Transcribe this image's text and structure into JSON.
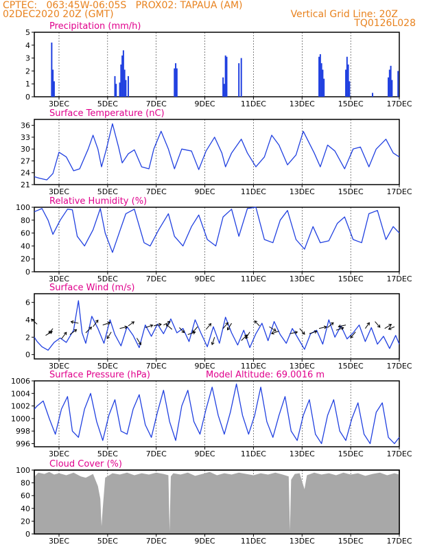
{
  "header": {
    "left1": "CPTEC:   063:45W-06:05S   PROX02: TAPAUA (AM)",
    "left2": "02DEC2020 20Z (GMT)",
    "right1": "Vertical Grid Line: 20Z",
    "right2": "TQ0126L028"
  },
  "colors": {
    "header": "#e8821e",
    "panel_title": "#e0008c",
    "line": "#2040e0",
    "bar": "#2040e0",
    "cloud": "#a8a8a8",
    "arrow": "#000000"
  },
  "x_axis": {
    "ticks": [
      "3DEC",
      "5DEC",
      "7DEC",
      "9DEC",
      "11DEC",
      "13DEC",
      "15DEC",
      "17DEC"
    ]
  },
  "chart_data": [
    {
      "type": "bar",
      "title": "Precipitation (mm/h)",
      "ylim": [
        0,
        5
      ],
      "yticks": [
        "0",
        "1",
        "2",
        "3",
        "4",
        "5"
      ],
      "points": [
        [
          2.7,
          4.2
        ],
        [
          2.75,
          2.1
        ],
        [
          2.8,
          1.2
        ],
        [
          5.3,
          1.6
        ],
        [
          5.35,
          1.0
        ],
        [
          5.5,
          1.1
        ],
        [
          5.55,
          2.5
        ],
        [
          5.6,
          3.2
        ],
        [
          5.65,
          3.6
        ],
        [
          5.7,
          2.1
        ],
        [
          5.75,
          1.3
        ],
        [
          5.85,
          1.6
        ],
        [
          7.75,
          2.2
        ],
        [
          7.8,
          2.6
        ],
        [
          7.85,
          2.2
        ],
        [
          9.75,
          1.5
        ],
        [
          9.8,
          1.0
        ],
        [
          9.85,
          3.2
        ],
        [
          9.9,
          3.1
        ],
        [
          10.4,
          2.6
        ],
        [
          10.5,
          3.0
        ],
        [
          13.7,
          3.1
        ],
        [
          13.75,
          3.3
        ],
        [
          13.8,
          2.6
        ],
        [
          13.85,
          2.1
        ],
        [
          13.9,
          1.4
        ],
        [
          14.8,
          2.1
        ],
        [
          14.85,
          3.1
        ],
        [
          14.9,
          2.5
        ],
        [
          14.95,
          1.2
        ],
        [
          15.9,
          0.3
        ],
        [
          16.55,
          1.5
        ],
        [
          16.6,
          2.1
        ],
        [
          16.65,
          2.4
        ],
        [
          16.7,
          1.3
        ],
        [
          16.95,
          2.0
        ]
      ]
    },
    {
      "type": "line",
      "title": "Surface Temperature (nC)",
      "ylim": [
        21,
        37.5
      ],
      "yticks": [
        "21",
        "24",
        "27",
        "30",
        "33",
        "36"
      ],
      "x": [
        1.85,
        2.2,
        2.5,
        2.75,
        3.0,
        3.3,
        3.6,
        3.85,
        4.2,
        4.4,
        4.6,
        4.75,
        4.95,
        5.2,
        5.45,
        5.6,
        5.85,
        6.1,
        6.4,
        6.7,
        6.9,
        7.2,
        7.5,
        7.75,
        8.05,
        8.45,
        8.75,
        9.05,
        9.4,
        9.7,
        9.85,
        10.1,
        10.5,
        10.75,
        11.1,
        11.45,
        11.75,
        12.05,
        12.4,
        12.75,
        13.05,
        13.5,
        13.75,
        14.05,
        14.35,
        14.75,
        15.1,
        15.4,
        15.75,
        16.05,
        16.45,
        16.75,
        17.0
      ],
      "y": [
        23.0,
        22.6,
        22.2,
        23.8,
        29.2,
        28.0,
        24.5,
        25.0,
        30.0,
        33.5,
        30.0,
        25.5,
        30.0,
        36.4,
        30.5,
        26.5,
        28.8,
        29.8,
        25.5,
        25.0,
        30.0,
        34.5,
        30.0,
        25.0,
        30.0,
        29.5,
        24.8,
        29.5,
        33.0,
        29.0,
        25.5,
        29.0,
        32.5,
        29.0,
        25.5,
        28.0,
        33.5,
        31.0,
        26.0,
        28.5,
        34.5,
        29.0,
        25.5,
        31.0,
        29.5,
        25.0,
        30.0,
        30.5,
        25.5,
        30.0,
        32.5,
        29.0,
        28.0
      ]
    },
    {
      "type": "line",
      "title": "Relative Humidity (%)",
      "ylim": [
        0,
        100
      ],
      "yticks": [
        "0",
        "20",
        "40",
        "60",
        "80",
        "100"
      ],
      "x": [
        1.85,
        2.3,
        2.55,
        2.75,
        3.05,
        3.35,
        3.55,
        3.75,
        4.05,
        4.4,
        4.7,
        4.9,
        5.2,
        5.5,
        5.75,
        6.1,
        6.5,
        6.75,
        7.1,
        7.5,
        7.75,
        8.1,
        8.45,
        8.75,
        9.1,
        9.45,
        9.75,
        10.1,
        10.4,
        10.75,
        11.1,
        11.45,
        11.8,
        12.1,
        12.4,
        12.75,
        13.1,
        13.45,
        13.75,
        14.1,
        14.45,
        14.75,
        15.1,
        15.45,
        15.75,
        16.1,
        16.45,
        16.75,
        17.0
      ],
      "y": [
        93,
        98,
        80,
        58,
        80,
        97,
        96,
        55,
        40,
        65,
        98,
        60,
        30,
        63,
        90,
        97,
        45,
        40,
        65,
        90,
        55,
        40,
        70,
        88,
        50,
        40,
        85,
        97,
        55,
        98,
        100,
        50,
        45,
        80,
        95,
        50,
        35,
        70,
        45,
        48,
        75,
        85,
        50,
        45,
        90,
        95,
        50,
        70,
        60
      ]
    },
    {
      "type": "line",
      "title": "Surface Wind (m/s)",
      "ylim": [
        -0.5,
        7
      ],
      "yticks": [
        "0",
        "2",
        "4",
        "6"
      ],
      "x": [
        1.85,
        2.1,
        2.3,
        2.55,
        2.8,
        3.05,
        3.3,
        3.6,
        3.8,
        3.95,
        4.1,
        4.35,
        4.6,
        4.85,
        5.1,
        5.3,
        5.55,
        5.8,
        6.05,
        6.3,
        6.55,
        6.8,
        7.05,
        7.3,
        7.6,
        7.85,
        8.1,
        8.35,
        8.6,
        8.85,
        9.1,
        9.35,
        9.6,
        9.85,
        10.1,
        10.35,
        10.6,
        10.85,
        11.1,
        11.35,
        11.6,
        11.85,
        12.1,
        12.35,
        12.6,
        12.85,
        13.1,
        13.35,
        13.6,
        13.85,
        14.1,
        14.35,
        14.6,
        14.85,
        15.1,
        15.35,
        15.6,
        15.85,
        16.1,
        16.35,
        16.6,
        16.85,
        17.0
      ],
      "y": [
        2.0,
        1.5,
        0.9,
        0.5,
        1.4,
        1.9,
        1.4,
        2.8,
        6.2,
        2.5,
        1.3,
        4.4,
        3.0,
        1.3,
        4.0,
        2.3,
        1.0,
        3.2,
        2.2,
        0.8,
        3.4,
        2.1,
        3.5,
        2.4,
        4.1,
        2.5,
        3.0,
        1.5,
        4.0,
        2.4,
        0.9,
        3.2,
        1.3,
        4.3,
        2.5,
        1.1,
        2.8,
        0.8,
        2.4,
        3.6,
        1.6,
        3.8,
        2.3,
        1.3,
        3.0,
        1.8,
        0.6,
        2.4,
        2.8,
        1.2,
        4.0,
        2.0,
        3.3,
        1.8,
        2.5,
        3.4,
        1.5,
        3.1,
        1.2,
        2.1,
        0.7,
        2.2,
        1.2
      ]
    },
    {
      "type": "line",
      "title": "Surface Pressure (hPa)",
      "annotation": "Model Altitude: 69.0016 m",
      "ylim": [
        995.5,
        1006
      ],
      "yticks": [
        "996",
        "998",
        "1000",
        "1002",
        "1004",
        "1006"
      ],
      "x": [
        1.85,
        2.1,
        2.35,
        2.6,
        2.85,
        3.1,
        3.35,
        3.55,
        3.8,
        4.05,
        4.3,
        4.55,
        4.8,
        5.05,
        5.3,
        5.55,
        5.8,
        6.05,
        6.3,
        6.55,
        6.8,
        7.05,
        7.3,
        7.55,
        7.8,
        8.05,
        8.3,
        8.55,
        8.8,
        9.05,
        9.3,
        9.55,
        9.8,
        10.05,
        10.3,
        10.55,
        10.8,
        11.05,
        11.3,
        11.55,
        11.8,
        12.05,
        12.3,
        12.55,
        12.8,
        13.05,
        13.3,
        13.55,
        13.8,
        14.05,
        14.3,
        14.55,
        14.8,
        15.05,
        15.3,
        15.55,
        15.8,
        16.05,
        16.3,
        16.55,
        16.8,
        17.0
      ],
      "y": [
        1001.5,
        1002.0,
        1002.8,
        1000.0,
        997.5,
        1001.5,
        1003.5,
        998.0,
        997.0,
        1001.5,
        1004.0,
        999.5,
        996.5,
        1000.5,
        1003.0,
        998.0,
        997.5,
        1001.5,
        1003.8,
        999.0,
        997.0,
        1001.0,
        1004.5,
        999.5,
        996.5,
        1002.0,
        1004.5,
        999.5,
        997.5,
        1001.5,
        1005.0,
        1000.5,
        997.5,
        1001.0,
        1005.5,
        1000.5,
        997.5,
        1000.5,
        1005.0,
        999.5,
        997.0,
        1000.5,
        1003.5,
        998.0,
        996.5,
        1000.5,
        1003.0,
        997.5,
        996.0,
        1000.5,
        1003.0,
        998.0,
        996.5,
        1000.0,
        1002.5,
        997.5,
        996.0,
        1001.0,
        1002.5,
        997.0,
        996.0,
        997.0
      ]
    },
    {
      "type": "area",
      "title": "Cloud Cover (%)",
      "ylim": [
        0,
        100
      ],
      "yticks": [
        "0",
        "20",
        "40",
        "60",
        "80",
        "100"
      ],
      "x": [
        1.85,
        2.0,
        2.15,
        2.4,
        2.6,
        2.8,
        3.0,
        3.3,
        3.6,
        3.9,
        4.1,
        4.4,
        4.6,
        4.7,
        4.75,
        4.8,
        4.9,
        5.2,
        5.5,
        5.8,
        6.1,
        6.4,
        6.7,
        7.0,
        7.3,
        7.5,
        7.55,
        7.6,
        7.7,
        8.0,
        8.3,
        8.6,
        8.9,
        9.2,
        9.5,
        9.8,
        10.1,
        10.4,
        10.7,
        11.0,
        11.3,
        11.6,
        11.9,
        12.2,
        12.45,
        12.5,
        12.55,
        12.7,
        12.9,
        13.1,
        13.2,
        13.5,
        13.8,
        14.1,
        14.4,
        14.7,
        15.0,
        15.3,
        15.6,
        15.9,
        16.2,
        16.5,
        16.8,
        17.0
      ],
      "y": [
        80,
        90,
        96,
        94,
        97,
        93,
        95,
        92,
        96,
        90,
        88,
        94,
        75,
        55,
        12,
        40,
        88,
        95,
        93,
        96,
        92,
        95,
        93,
        96,
        94,
        92,
        4,
        90,
        95,
        93,
        96,
        91,
        94,
        97,
        92,
        95,
        93,
        96,
        94,
        92,
        95,
        93,
        96,
        93,
        90,
        5,
        85,
        94,
        95,
        70,
        92,
        96,
        93,
        95,
        92,
        96,
        93,
        95,
        91,
        94,
        96,
        92,
        95,
        93
      ]
    },
    {
      "type": "scatter",
      "title": "Surface Wind Arrows",
      "x": [
        2.1,
        2.45,
        2.75,
        3.1,
        3.45,
        3.8,
        4.1,
        4.4,
        4.8,
        5.15,
        5.5,
        5.85,
        6.2,
        6.55,
        6.9,
        7.3,
        7.65,
        7.95,
        8.3,
        8.7,
        9.05,
        9.4,
        9.75,
        10.1,
        10.5,
        10.85,
        11.25,
        11.65,
        12.05,
        12.5,
        12.9,
        13.3,
        13.7,
        14.05,
        14.4,
        14.8,
        15.2,
        15.6,
        16.0,
        16.4,
        16.8
      ],
      "y": [
        3.5,
        2.2,
        3.0,
        1.8,
        2.3,
        3.6,
        2.5,
        3.2,
        3.4,
        2.6,
        3.0,
        3.3,
        1.9,
        3.1,
        3.3,
        3.4,
        2.9,
        3.1,
        2.3,
        3.2,
        2.9,
        2.0,
        3.0,
        3.6,
        1.6,
        2.6,
        3.3,
        3.2,
        2.7,
        2.4,
        3.0,
        2.4,
        3.0,
        3.1,
        2.8,
        3.4,
        2.6,
        3.0,
        3.8,
        3.0,
        3.2
      ],
      "u": [
        -0.7,
        0.8,
        -0.5,
        0.6,
        0.8,
        -0.9,
        0.7,
        0.6,
        0.9,
        -0.5,
        0.9,
        0.7,
        0.5,
        0.9,
        0.9,
        0.8,
        -0.7,
        0.6,
        0.9,
        -0.6,
        0.6,
        -0.3,
        0.6,
        -0.5,
        0.7,
        -0.5,
        -0.6,
        0.8,
        -0.9,
        0.9,
        0.6,
        0.9,
        0.9,
        0.7,
        0.9,
        -0.9,
        -0.6,
        0.5,
        0.6,
        0.8,
        -0.7
      ],
      "v": [
        0.6,
        0.5,
        -0.6,
        0.8,
        0.6,
        0.2,
        0.7,
        0.8,
        0.3,
        -0.8,
        0.2,
        0.5,
        -0.8,
        0.3,
        0.2,
        0.4,
        0.6,
        -0.6,
        0.3,
        -0.7,
        0.7,
        -0.9,
        0.7,
        -0.8,
        0.7,
        -0.8,
        0.6,
        -0.5,
        -0.3,
        0.2,
        -0.7,
        0.3,
        0.2,
        0.6,
        0.3,
        -0.2,
        -0.7,
        0.7,
        -0.7,
        0.5,
        -0.3
      ]
    }
  ]
}
